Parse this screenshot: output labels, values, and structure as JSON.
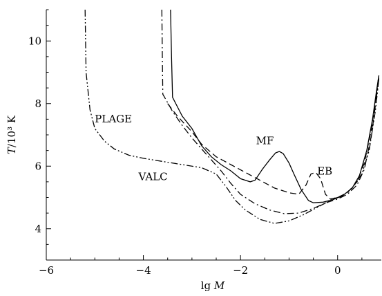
{
  "chart_data": {
    "type": "line",
    "xlabel": "lg M",
    "ylabel": "T/10³ K",
    "xlim": [
      -6,
      0.9
    ],
    "ylim": [
      3,
      11
    ],
    "x_ticks": [
      -6,
      -4,
      -2,
      0
    ],
    "x_tick_labels": [
      "−6",
      "−4",
      "−2",
      "0"
    ],
    "y_ticks": [
      4,
      6,
      8,
      10
    ],
    "y_tick_labels": [
      "4",
      "6",
      "8",
      "10"
    ],
    "grid": false,
    "series": [
      {
        "name": "MF",
        "style": "solid",
        "points": [
          [
            -3.44,
            11
          ],
          [
            -3.42,
            9.5
          ],
          [
            -3.4,
            8.2
          ],
          [
            -3.2,
            7.6
          ],
          [
            -3.0,
            7.2
          ],
          [
            -2.8,
            6.65
          ],
          [
            -2.6,
            6.3
          ],
          [
            -2.4,
            6.05
          ],
          [
            -2.2,
            5.85
          ],
          [
            -2.0,
            5.6
          ],
          [
            -1.8,
            5.5
          ],
          [
            -1.7,
            5.55
          ],
          [
            -1.55,
            5.9
          ],
          [
            -1.4,
            6.2
          ],
          [
            -1.28,
            6.42
          ],
          [
            -1.2,
            6.47
          ],
          [
            -1.12,
            6.4
          ],
          [
            -1.0,
            6.1
          ],
          [
            -0.9,
            5.75
          ],
          [
            -0.75,
            5.25
          ],
          [
            -0.6,
            4.9
          ],
          [
            -0.5,
            4.83
          ],
          [
            -0.3,
            4.85
          ],
          [
            -0.1,
            4.93
          ],
          [
            0.1,
            5.05
          ],
          [
            0.3,
            5.3
          ],
          [
            0.45,
            5.7
          ],
          [
            0.6,
            6.5
          ],
          [
            0.72,
            7.5
          ],
          [
            0.8,
            8.4
          ],
          [
            0.85,
            8.9
          ]
        ]
      },
      {
        "name": "EB",
        "style": "dashed",
        "points": [
          [
            -3.5,
            8.0
          ],
          [
            -3.3,
            7.6
          ],
          [
            -3.0,
            7.1
          ],
          [
            -2.8,
            6.7
          ],
          [
            -2.5,
            6.3
          ],
          [
            -2.2,
            6.05
          ],
          [
            -1.9,
            5.8
          ],
          [
            -1.6,
            5.55
          ],
          [
            -1.3,
            5.3
          ],
          [
            -1.0,
            5.15
          ],
          [
            -0.8,
            5.1
          ],
          [
            -0.65,
            5.4
          ],
          [
            -0.55,
            5.75
          ],
          [
            -0.45,
            5.8
          ],
          [
            -0.35,
            5.6
          ],
          [
            -0.25,
            5.1
          ],
          [
            -0.15,
            4.95
          ],
          [
            0.0,
            5.0
          ],
          [
            0.2,
            5.15
          ],
          [
            0.4,
            5.5
          ],
          [
            0.55,
            6.1
          ],
          [
            0.7,
            7.2
          ],
          [
            0.85,
            8.9
          ]
        ]
      },
      {
        "name": "PLAGE",
        "style": "dash-dot",
        "points": [
          [
            -3.62,
            11
          ],
          [
            -3.61,
            9.5
          ],
          [
            -3.6,
            8.3
          ],
          [
            -3.4,
            7.75
          ],
          [
            -3.2,
            7.3
          ],
          [
            -3.0,
            6.9
          ],
          [
            -2.8,
            6.55
          ],
          [
            -2.6,
            6.2
          ],
          [
            -2.4,
            5.85
          ],
          [
            -2.2,
            5.45
          ],
          [
            -2.0,
            5.1
          ],
          [
            -1.7,
            4.8
          ],
          [
            -1.4,
            4.6
          ],
          [
            -1.1,
            4.48
          ],
          [
            -0.8,
            4.5
          ],
          [
            -0.5,
            4.65
          ],
          [
            -0.2,
            4.85
          ],
          [
            0.0,
            4.95
          ],
          [
            0.2,
            5.1
          ],
          [
            0.4,
            5.4
          ],
          [
            0.55,
            5.9
          ],
          [
            0.7,
            7.0
          ],
          [
            0.85,
            8.8
          ]
        ]
      },
      {
        "name": "VALC",
        "style": "dash-dot-dot",
        "points": [
          [
            -5.2,
            11
          ],
          [
            -5.18,
            9.0
          ],
          [
            -5.1,
            7.8
          ],
          [
            -5.0,
            7.2
          ],
          [
            -4.8,
            6.8
          ],
          [
            -4.6,
            6.55
          ],
          [
            -4.3,
            6.35
          ],
          [
            -4.0,
            6.25
          ],
          [
            -3.6,
            6.15
          ],
          [
            -3.2,
            6.05
          ],
          [
            -2.8,
            5.95
          ],
          [
            -2.5,
            5.75
          ],
          [
            -2.3,
            5.35
          ],
          [
            -2.1,
            4.9
          ],
          [
            -1.9,
            4.6
          ],
          [
            -1.6,
            4.3
          ],
          [
            -1.3,
            4.17
          ],
          [
            -1.0,
            4.25
          ],
          [
            -0.7,
            4.45
          ],
          [
            -0.4,
            4.7
          ],
          [
            -0.1,
            4.95
          ],
          [
            0.1,
            5.05
          ],
          [
            0.3,
            5.3
          ],
          [
            0.5,
            5.75
          ],
          [
            0.65,
            6.5
          ],
          [
            0.78,
            7.8
          ],
          [
            0.85,
            8.8
          ]
        ]
      }
    ],
    "annotations": [
      {
        "text": "PLAGE",
        "x": -5.0,
        "y": 7.4
      },
      {
        "text": "MF",
        "x": -1.68,
        "y": 6.7
      },
      {
        "text": "EB",
        "x": -0.42,
        "y": 5.73
      },
      {
        "text": "VALC",
        "x": -4.1,
        "y": 5.55
      }
    ]
  }
}
